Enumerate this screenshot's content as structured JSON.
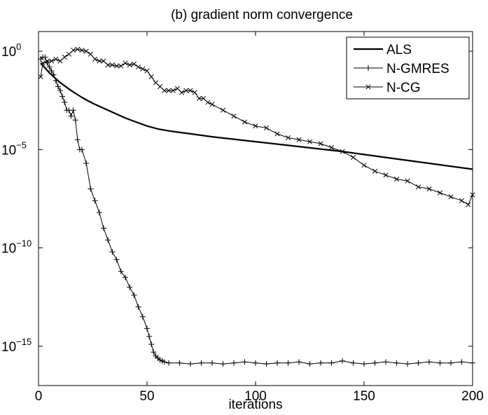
{
  "chart_data": {
    "type": "line",
    "title": "(b) gradient norm convergence",
    "xlabel": "iterations",
    "ylabel": "",
    "xlim": [
      0,
      200
    ],
    "ylim_log10": [
      -17,
      1
    ],
    "y_scale": "log",
    "grid": false,
    "legend_position": "top-right",
    "x_ticks": [
      0,
      50,
      100,
      150,
      200
    ],
    "x_tick_labels": [
      "0",
      "50",
      "100",
      "150",
      "200"
    ],
    "y_ticks_log10": [
      0,
      -5,
      -10,
      -15
    ],
    "y_tick_labels": [
      {
        "base": "10",
        "exp": "0"
      },
      {
        "base": "10",
        "exp": "−5"
      },
      {
        "base": "10",
        "exp": "−10"
      },
      {
        "base": "10",
        "exp": "−15"
      }
    ],
    "series": [
      {
        "name": "ALS",
        "marker": "none",
        "line_width": 2.2,
        "x": [
          1,
          5,
          10,
          15,
          20,
          25,
          30,
          35,
          40,
          45,
          50,
          55,
          60,
          70,
          80,
          100,
          120,
          140,
          160,
          180,
          200
        ],
        "log10_y": [
          -0.6,
          -1.1,
          -1.6,
          -2.0,
          -2.35,
          -2.65,
          -2.9,
          -3.15,
          -3.4,
          -3.6,
          -3.8,
          -3.95,
          -4.05,
          -4.2,
          -4.35,
          -4.6,
          -4.85,
          -5.1,
          -5.4,
          -5.7,
          -6.0
        ]
      },
      {
        "name": "N-GMRES",
        "marker": "plus",
        "line_width": 1,
        "x": [
          1,
          2,
          3,
          4,
          5,
          6,
          7,
          8,
          9,
          10,
          11,
          12,
          13,
          14,
          15,
          16,
          17,
          18,
          19,
          20,
          22,
          24,
          26,
          28,
          30,
          32,
          34,
          36,
          38,
          40,
          42,
          44,
          46,
          48,
          50,
          51,
          52,
          53,
          54,
          55,
          56,
          57,
          58,
          60,
          65,
          70,
          75,
          80,
          85,
          90,
          95,
          100,
          105,
          110,
          115,
          120,
          125,
          130,
          135,
          140,
          145,
          150,
          155,
          160,
          165,
          170,
          175,
          180,
          185,
          190,
          195,
          200
        ],
        "log10_y": [
          -0.4,
          -0.3,
          -0.3,
          -0.6,
          -0.8,
          -1.0,
          -1.2,
          -1.5,
          -1.8,
          -2.0,
          -2.3,
          -2.6,
          -3.0,
          -3.0,
          -3.3,
          -3.0,
          -3.5,
          -4.5,
          -5.0,
          -5.0,
          -5.7,
          -7.0,
          -7.6,
          -8.2,
          -9.0,
          -9.6,
          -10.2,
          -10.6,
          -11.2,
          -11.5,
          -12.0,
          -12.4,
          -13.0,
          -13.5,
          -14.1,
          -14.5,
          -14.9,
          -15.3,
          -15.5,
          -15.6,
          -15.7,
          -15.75,
          -15.8,
          -15.85,
          -15.85,
          -15.9,
          -15.85,
          -15.85,
          -15.9,
          -15.85,
          -15.8,
          -15.85,
          -15.9,
          -15.85,
          -15.85,
          -15.8,
          -15.9,
          -15.85,
          -15.85,
          -15.75,
          -15.85,
          -15.9,
          -15.85,
          -15.8,
          -15.85,
          -15.9,
          -15.85,
          -15.8,
          -15.85,
          -15.85,
          -15.8,
          -15.85
        ]
      },
      {
        "name": "N-CG",
        "marker": "x",
        "line_width": 1,
        "x": [
          1,
          2,
          4,
          6,
          8,
          10,
          12,
          14,
          16,
          18,
          20,
          22,
          24,
          26,
          28,
          30,
          32,
          34,
          36,
          38,
          40,
          42,
          44,
          46,
          48,
          50,
          52,
          54,
          56,
          58,
          60,
          62,
          64,
          66,
          68,
          70,
          72,
          74,
          76,
          78,
          80,
          85,
          90,
          95,
          100,
          105,
          110,
          115,
          120,
          125,
          130,
          135,
          140,
          145,
          150,
          155,
          160,
          165,
          170,
          175,
          180,
          185,
          190,
          195,
          198,
          200
        ],
        "log10_y": [
          -1.3,
          -0.6,
          -0.5,
          -0.5,
          -0.4,
          -0.5,
          -0.3,
          -0.15,
          0.05,
          0.1,
          0.05,
          0.0,
          -0.15,
          -0.4,
          -0.5,
          -0.5,
          -0.7,
          -0.7,
          -0.75,
          -0.75,
          -0.6,
          -0.7,
          -0.65,
          -0.8,
          -0.9,
          -1.0,
          -1.3,
          -1.6,
          -1.8,
          -2.0,
          -2.0,
          -2.0,
          -1.9,
          -2.1,
          -2.0,
          -2.0,
          -2.1,
          -2.4,
          -2.4,
          -2.6,
          -2.7,
          -3.0,
          -3.3,
          -3.6,
          -3.8,
          -3.9,
          -4.2,
          -4.4,
          -4.5,
          -4.6,
          -4.7,
          -4.9,
          -5.1,
          -5.4,
          -5.8,
          -6.1,
          -6.3,
          -6.5,
          -6.6,
          -6.9,
          -7.0,
          -7.2,
          -7.4,
          -7.6,
          -7.8,
          -7.3
        ]
      }
    ]
  }
}
